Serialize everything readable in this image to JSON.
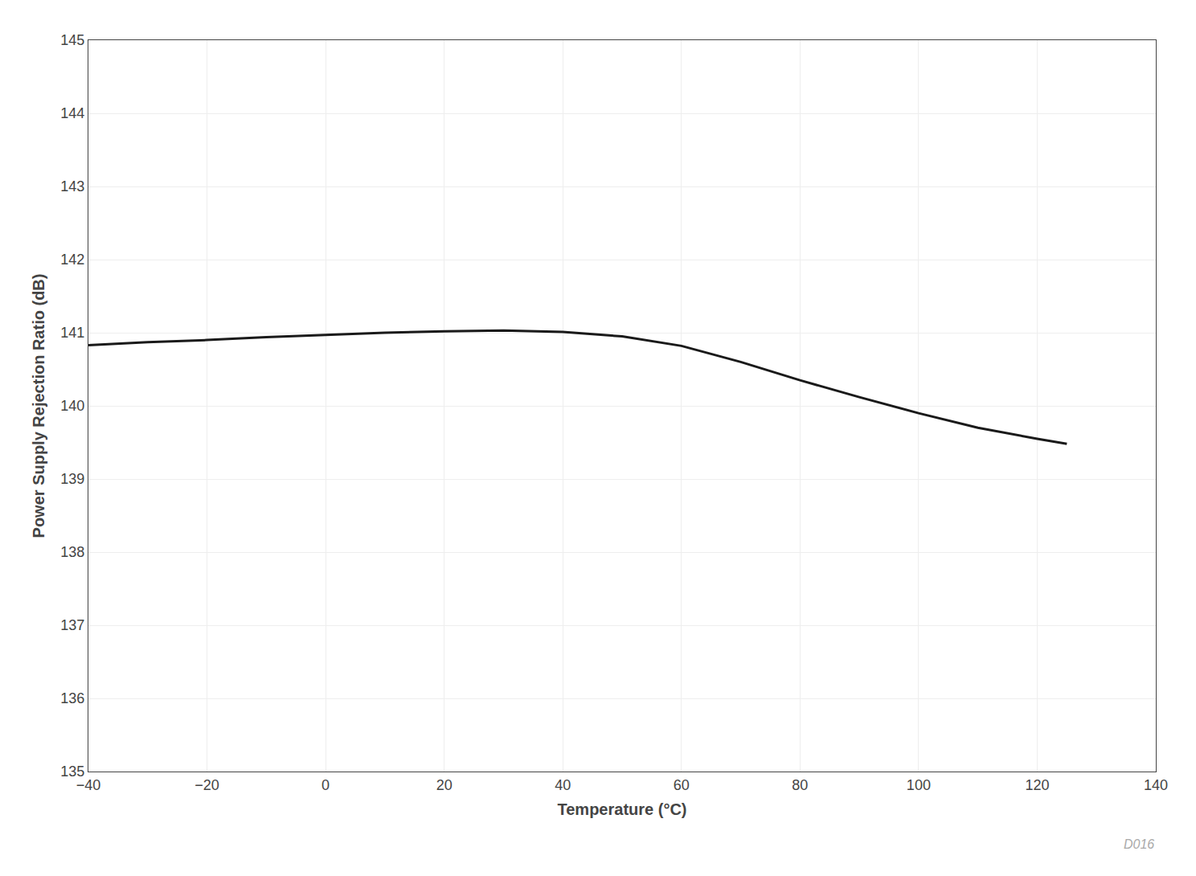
{
  "chart_data": {
    "type": "line",
    "x": [
      -40,
      -30,
      -20,
      -10,
      0,
      10,
      20,
      30,
      40,
      50,
      60,
      70,
      80,
      90,
      100,
      110,
      120,
      125
    ],
    "values": [
      140.83,
      140.87,
      140.9,
      140.94,
      140.97,
      141.0,
      141.02,
      141.03,
      141.01,
      140.95,
      140.82,
      140.6,
      140.35,
      140.12,
      139.9,
      139.7,
      139.55,
      139.48
    ],
    "color": "#1a1a1a",
    "xlabel": "Temperature (°C)",
    "ylabel": "Power Supply Rejection Ratio (dB)",
    "xlim": [
      -40,
      140
    ],
    "ylim": [
      135,
      145
    ],
    "xticks": [
      -40,
      -20,
      0,
      20,
      40,
      60,
      80,
      100,
      120,
      140
    ],
    "yticks": [
      135,
      136,
      137,
      138,
      139,
      140,
      141,
      142,
      143,
      144,
      145
    ],
    "grid": true,
    "annotation": "D016"
  }
}
